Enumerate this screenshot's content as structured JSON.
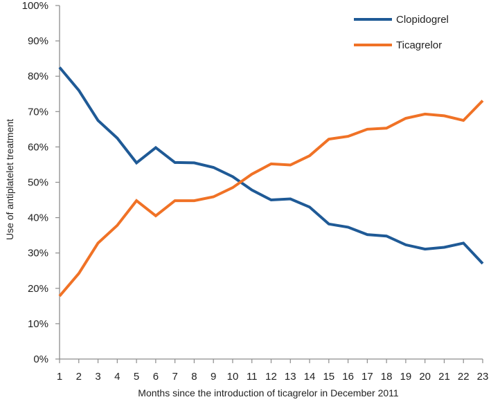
{
  "chart_data": {
    "type": "line",
    "title": "",
    "xlabel": "Months since the introduction of ticagrelor in December 2011",
    "ylabel": "Use of antiplatelet treatment",
    "x": [
      1,
      2,
      3,
      4,
      5,
      6,
      7,
      8,
      9,
      10,
      11,
      12,
      13,
      14,
      15,
      16,
      17,
      18,
      19,
      20,
      21,
      22,
      23
    ],
    "xlim": [
      1,
      23
    ],
    "ylim": [
      0,
      100
    ],
    "y_tick_labels": [
      "0%",
      "10%",
      "20%",
      "30%",
      "40%",
      "50%",
      "60%",
      "70%",
      "80%",
      "90%",
      "100%"
    ],
    "y_tick_values": [
      0,
      10,
      20,
      30,
      40,
      50,
      60,
      70,
      80,
      90,
      100
    ],
    "grid": false,
    "legend_position": "top-right",
    "series": [
      {
        "name": "Clopidogrel",
        "color": "#1f5a96",
        "values": [
          82.5,
          76,
          67.5,
          62.5,
          55.5,
          59.8,
          55.6,
          55.5,
          54.2,
          51.6,
          47.8,
          45,
          45.3,
          43,
          38.2,
          37.3,
          35.2,
          34.8,
          32.3,
          31.1,
          31.6,
          32.8,
          27
        ]
      },
      {
        "name": "Ticagrelor",
        "color": "#f07226",
        "values": [
          17.8,
          24.2,
          32.8,
          37.8,
          44.8,
          40.5,
          44.8,
          44.8,
          45.9,
          48.5,
          52.3,
          55.2,
          54.9,
          57.5,
          62.2,
          63,
          65,
          65.3,
          68.1,
          69.3,
          68.8,
          67.5,
          73.1
        ]
      }
    ]
  }
}
